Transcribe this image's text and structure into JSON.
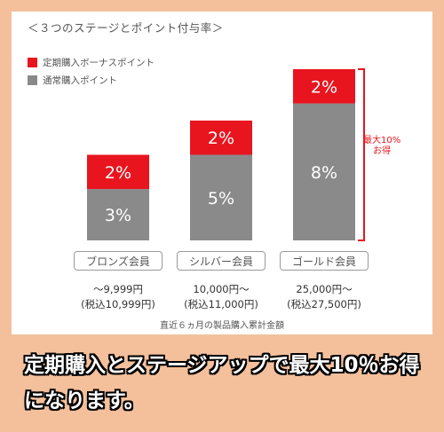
{
  "title": "＜３つのステージとポイント付与率＞",
  "legend": [
    {
      "label": "定期購入ボーナスポイント",
      "color": "#e8151f"
    },
    {
      "label": "通常購入ポイント",
      "color": "#8a8a8a"
    }
  ],
  "chart_data": {
    "type": "bar",
    "stacked": true,
    "categories": [
      "ブロンズ会員",
      "シルバー会員",
      "ゴールド会員"
    ],
    "series": [
      {
        "name": "通常購入ポイント",
        "color": "#8a8a8a",
        "values": [
          3,
          5,
          8
        ],
        "labels": [
          "3%",
          "5%",
          "8%"
        ]
      },
      {
        "name": "定期購入ボーナスポイント",
        "color": "#e8151f",
        "values": [
          2,
          2,
          2
        ],
        "labels": [
          "2%",
          "2%",
          "2%"
        ]
      }
    ],
    "unit": "%",
    "annotation": {
      "line1": "最大10%",
      "line2": "お得"
    }
  },
  "tiers": [
    {
      "name": "ブロンズ会員",
      "range": "〜9,999円",
      "tax": "(税込10,999円)"
    },
    {
      "name": "シルバー会員",
      "range": "10,000円〜",
      "tax": "(税込11,000円)"
    },
    {
      "name": "ゴールド会員",
      "range": "25,000円〜",
      "tax": "(税込27,500円)"
    }
  ],
  "footnote": "直近６ヵ月の製品購入累計金額",
  "caption": "定期購入とステージアップで最大10％お得になります。"
}
